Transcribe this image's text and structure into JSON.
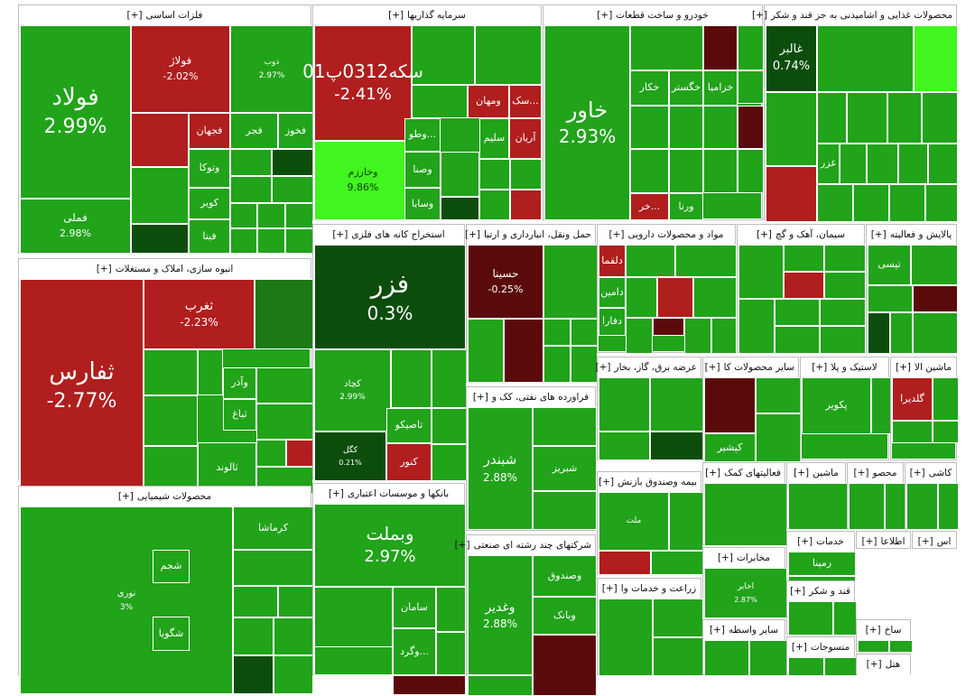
{
  "colors": {
    "up": "#21a31a",
    "up_bright": "#41f51e",
    "up_dark": "#1b7a14",
    "deep_up": "#0c4d0c",
    "down": "#b01e1e",
    "down_dark": "#5a0a0a"
  },
  "chart_data": {
    "type": "treemap",
    "title": "",
    "value_unit": "%",
    "sectors": [
      {
        "name": "فلزات اساسی",
        "toggle": "[+]",
        "tiles": [
          {
            "name": "فولاد",
            "change": "2.99%",
            "change_value": 2.99
          },
          {
            "name": "فملی",
            "change": "2.98%",
            "change_value": 2.98
          },
          {
            "name": "فولاژ",
            "change": "-2.02%",
            "change_value": -2.02
          },
          {
            "name": "ذوب",
            "change": "2.97%",
            "change_value": 2.97
          },
          {
            "name": "فجهان",
            "change": "",
            "change_value": -2.5
          },
          {
            "name": "فخوز",
            "change": "",
            "change_value": 2.9
          },
          {
            "name": "فجر",
            "change": "",
            "change_value": 2.8
          },
          {
            "name": "وتوکا",
            "change": "",
            "change_value": 2.5
          },
          {
            "name": "کویر",
            "change": "",
            "change_value": 2.4
          },
          {
            "name": "فیتا",
            "change": "",
            "change_value": 2.2
          }
        ]
      },
      {
        "name": "سرمایه گذاریها",
        "toggle": "[+]",
        "tiles": [
          {
            "name": "سکه0312پ01",
            "change": "-2.41%",
            "change_value": -2.41
          },
          {
            "name": "وخارزم",
            "change": "9.86%",
            "change_value": 9.86
          },
          {
            "name": "ومهان",
            "change": "",
            "change_value": -3.0
          },
          {
            "name": "سک...",
            "change": "",
            "change_value": -2.5
          },
          {
            "name": "آریان",
            "change": "",
            "change_value": -2.0
          },
          {
            "name": "سلیم",
            "change": "",
            "change_value": 2.8
          },
          {
            "name": "وطو...",
            "change": "",
            "change_value": 2.6
          },
          {
            "name": "وصنا",
            "change": "",
            "change_value": 2.5
          },
          {
            "name": "وسایا",
            "change": "",
            "change_value": 2.4
          }
        ]
      },
      {
        "name": "خودرو و ساخت قطعات",
        "toggle": "[+]",
        "tiles": [
          {
            "name": "خاور",
            "change": "2.93%",
            "change_value": 2.93
          },
          {
            "name": "خکار",
            "change": "",
            "change_value": 2.8
          },
          {
            "name": "خگستر",
            "change": "",
            "change_value": 2.7
          },
          {
            "name": "خزامیا",
            "change": "",
            "change_value": 2.6
          },
          {
            "name": "ورنا",
            "change": "",
            "change_value": 2.5
          },
          {
            "name": "خر...",
            "change": "",
            "change_value": -2.0
          }
        ]
      },
      {
        "name": "محصولات غذایی و اشامیدنی به جز قند و شکر",
        "toggle": "[+]",
        "tiles": [
          {
            "name": "غالبر",
            "change": "0.74%",
            "change_value": 0.74
          },
          {
            "name": "غزر",
            "change": "",
            "change_value": 2.5
          }
        ]
      },
      {
        "name": "انبوه سازی، املاک و مستغلات",
        "toggle": "[+]",
        "tiles": [
          {
            "name": "ثفارس",
            "change": "-2.77%",
            "change_value": -2.77
          },
          {
            "name": "ثغرب",
            "change": "-2.23%",
            "change_value": -2.23
          },
          {
            "name": "وآذر",
            "change": "",
            "change_value": 2.8
          },
          {
            "name": "ثباغ",
            "change": "",
            "change_value": 2.6
          },
          {
            "name": "ثالوند",
            "change": "",
            "change_value": 2.5
          }
        ]
      },
      {
        "name": "استخراج کانه های فلزی",
        "toggle": "[+]",
        "tiles": [
          {
            "name": "فزر",
            "change": "0.3%",
            "change_value": 0.3
          },
          {
            "name": "کچاد",
            "change": "2.99%",
            "change_value": 2.99
          },
          {
            "name": "کگل",
            "change": "0.21%",
            "change_value": 0.21
          },
          {
            "name": "تاصیکو",
            "change": "",
            "change_value": 2.8
          },
          {
            "name": "کنور",
            "change": "",
            "change_value": -2.0
          }
        ]
      },
      {
        "name": "حمل ونقل، انبارداری و ارتبا",
        "toggle": "[+]",
        "tiles": [
          {
            "name": "حسینا",
            "change": "-0.25%",
            "change_value": -0.25
          }
        ]
      },
      {
        "name": "مواد و محصولات دارویی",
        "toggle": "[+]",
        "tiles": [
          {
            "name": "دلقما",
            "change": "",
            "change_value": -2.5
          },
          {
            "name": "دامین",
            "change": "",
            "change_value": 2.6
          },
          {
            "name": "دفارا",
            "change": "",
            "change_value": 2.5
          }
        ]
      },
      {
        "name": "سیمان، آهک و گچ",
        "toggle": "[+]",
        "tiles": []
      },
      {
        "name": "پالایش و فعالیته",
        "toggle": "[+]",
        "tiles": [
          {
            "name": "تپسی",
            "change": "",
            "change_value": 2.7
          }
        ]
      },
      {
        "name": "محصولات شیمیایی",
        "toggle": "[+]",
        "tiles": [
          {
            "name": "نوری",
            "change": "3%",
            "change_value": 3.0
          },
          {
            "name": "کرماشا",
            "change": "",
            "change_value": 2.8
          },
          {
            "name": "شجم",
            "change": "",
            "change_value": 2.6
          },
          {
            "name": "شگویا",
            "change": "",
            "change_value": 2.5
          }
        ]
      },
      {
        "name": "بانکها و موسسات اعتباری",
        "toggle": "[+]",
        "tiles": [
          {
            "name": "وبملت",
            "change": "2.97%",
            "change_value": 2.97
          },
          {
            "name": "سامان",
            "change": "",
            "change_value": 2.7
          },
          {
            "name": "وگرد...",
            "change": "",
            "change_value": 2.6
          }
        ]
      },
      {
        "name": "فراورده های نفتی، کک و",
        "toggle": "[+]",
        "tiles": [
          {
            "name": "شبندر",
            "change": "2.88%",
            "change_value": 2.88
          },
          {
            "name": "شبریز",
            "change": "",
            "change_value": 2.7
          }
        ]
      },
      {
        "name": "شرکتهای چند رشته ای صنعتی",
        "toggle": "[+]",
        "tiles": [
          {
            "name": "وغدیر",
            "change": "2.88%",
            "change_value": 2.88
          },
          {
            "name": "وصندوق",
            "change": "",
            "change_value": 2.7
          },
          {
            "name": "وبانک",
            "change": "",
            "change_value": 2.6
          }
        ]
      },
      {
        "name": "عرضه برق، گاز، بخار",
        "toggle": "[+]",
        "tiles": []
      },
      {
        "name": "سایر محصولات کا",
        "toggle": "[+]",
        "tiles": [
          {
            "name": "کپشیر",
            "change": "",
            "change_value": 2.6
          }
        ]
      },
      {
        "name": "لاستیک و پلا",
        "toggle": "[+]",
        "tiles": [
          {
            "name": "پکویر",
            "change": "",
            "change_value": 2.7
          }
        ]
      },
      {
        "name": "ماشین الا",
        "toggle": "[+]",
        "tiles": [
          {
            "name": "گلدیرا",
            "change": "",
            "change_value": -2.5
          }
        ]
      },
      {
        "name": "بیمه وصندوق بازنش",
        "toggle": "[+]",
        "tiles": [
          {
            "name": "ملت",
            "change": "",
            "change_value": 2.6
          }
        ]
      },
      {
        "name": "فعالیتهای کمک",
        "toggle": "[+]",
        "tiles": []
      },
      {
        "name": "ماشین",
        "toggle": "[+]",
        "tiles": []
      },
      {
        "name": "محصو",
        "toggle": "[+]",
        "tiles": []
      },
      {
        "name": "کاشی",
        "toggle": "[+]",
        "tiles": []
      },
      {
        "name": "خدمات",
        "toggle": "[+]",
        "tiles": [
          {
            "name": "رمپنا",
            "change": "",
            "change_value": 2.6
          }
        ]
      },
      {
        "name": "اطلاعا",
        "toggle": "[+]",
        "tiles": []
      },
      {
        "name": "اس",
        "toggle": "[+]",
        "tiles": []
      },
      {
        "name": "مخابرات",
        "toggle": "[+]",
        "tiles": [
          {
            "name": "اخابر",
            "change": "2.87%",
            "change_value": 2.87
          }
        ]
      },
      {
        "name": "قند و شکر",
        "toggle": "[+]",
        "tiles": []
      },
      {
        "name": "زراعت و خدمات وا",
        "toggle": "[+]",
        "tiles": []
      },
      {
        "name": "سایر واسطه",
        "toggle": "[+]",
        "tiles": []
      },
      {
        "name": "منسوجات",
        "toggle": "[+]",
        "tiles": []
      },
      {
        "name": "ساخ",
        "toggle": "[+]",
        "tiles": []
      },
      {
        "name": "هتل",
        "toggle": "[+]",
        "tiles": []
      }
    ]
  }
}
